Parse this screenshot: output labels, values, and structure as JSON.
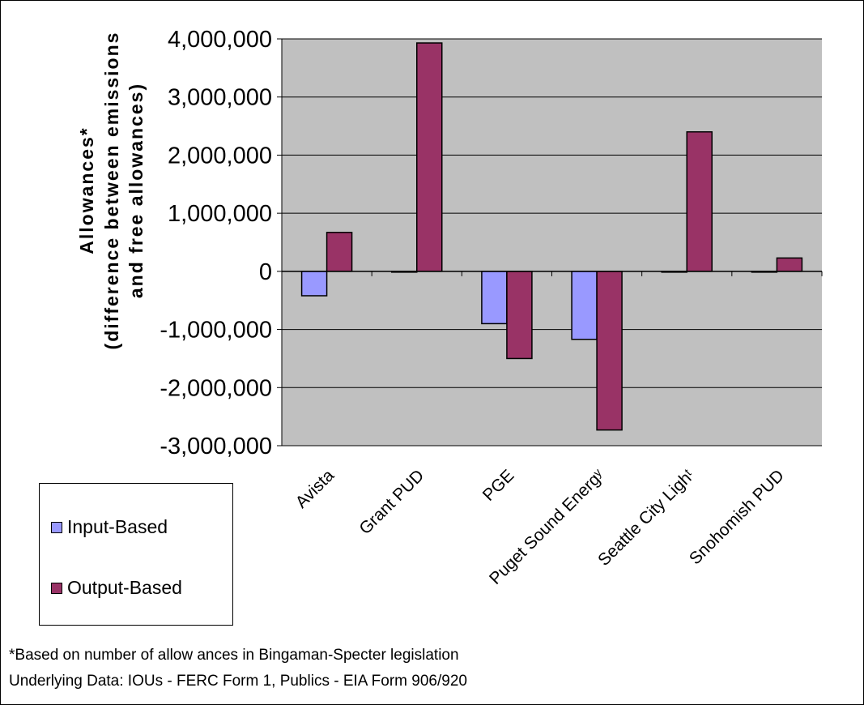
{
  "chart_data": {
    "type": "bar",
    "title": "",
    "ylabel_lines": [
      "Allowances*",
      "(difference between emissions",
      "and free allowances)"
    ],
    "xlabel": "",
    "categories": [
      "Avista",
      "Grant PUD",
      "PGE",
      "Puget Sound Energy",
      "Seattle City Light",
      "Snohomish PUD"
    ],
    "category_display": [
      "Avista",
      "Grant PUD",
      "PGE",
      "Puget Sound Energʸ",
      "Seattle City Lighᵗ",
      "Snohomish PUD"
    ],
    "series": [
      {
        "name": "Input-Based",
        "color": "#9999ff",
        "values": [
          -420000,
          0,
          -900000,
          -1170000,
          0,
          0
        ]
      },
      {
        "name": "Output-Based",
        "color": "#993366",
        "values": [
          670000,
          3930000,
          -1500000,
          -2730000,
          2400000,
          230000
        ]
      }
    ],
    "ylim": [
      -3000000,
      4000000
    ],
    "yticks": [
      4000000,
      3000000,
      2000000,
      1000000,
      0,
      -1000000,
      -2000000,
      -3000000
    ],
    "ytick_labels": [
      "4,000,000",
      "3,000,000",
      "2,000,000",
      "1,000,000",
      "0",
      "-1,000,000",
      "-2,000,000",
      "-3,000,000"
    ],
    "grid": true,
    "legend_position": "bottom-left",
    "plot_background": "#c0c0c0"
  },
  "legend": {
    "input_label": "Input-Based",
    "output_label": "Output-Based"
  },
  "footnotes": {
    "note": "*Based on number of allow ances in Bingaman-Specter legislation",
    "source": "Underlying Data: IOUs - FERC Form 1, Publics - EIA Form 906/920"
  }
}
